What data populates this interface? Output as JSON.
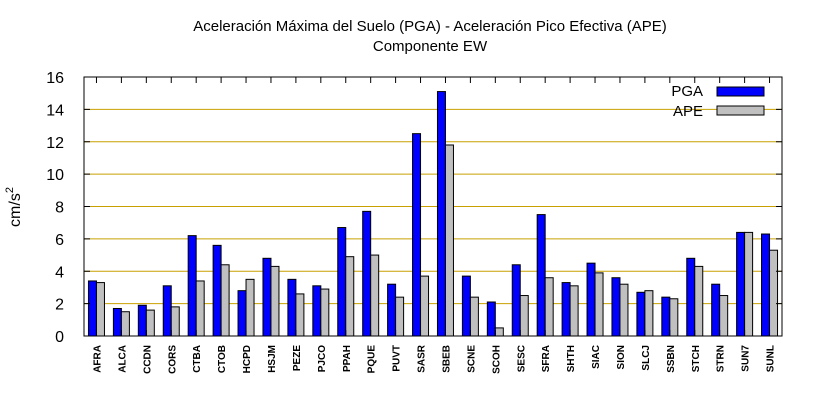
{
  "chart_data": {
    "type": "bar",
    "title": "Aceleración Máxima del Suelo (PGA) -  Aceleración Pico Efectiva (APE)",
    "subtitle": "Componente EW",
    "xlabel": "",
    "ylabel": "cm/s",
    "ylabel_superscript": "2",
    "ylim": [
      0,
      16
    ],
    "yticks": [
      0,
      2,
      4,
      6,
      8,
      10,
      12,
      14,
      16
    ],
    "grid": true,
    "legend_position": "top-right",
    "categories": [
      "AFRA",
      "ALCA",
      "CCDN",
      "CORS",
      "CTBA",
      "CTOB",
      "HCPD",
      "HSJM",
      "PEZE",
      "PJCO",
      "PPAH",
      "PQUE",
      "PUVT",
      "SASR",
      "SBEB",
      "SCNE",
      "SCOH",
      "SESC",
      "SFRA",
      "SHTH",
      "SIAC",
      "SION",
      "SLCJ",
      "SSBN",
      "STCH",
      "STRN",
      "SUN7",
      "SUNL"
    ],
    "series": [
      {
        "name": "PGA",
        "color": "#0000ff",
        "values": [
          3.4,
          1.7,
          1.9,
          3.1,
          6.2,
          5.6,
          2.8,
          4.8,
          3.5,
          3.1,
          6.7,
          7.7,
          3.2,
          12.5,
          15.1,
          3.7,
          2.1,
          4.4,
          7.5,
          3.3,
          4.5,
          3.6,
          2.7,
          2.4,
          4.8,
          3.2,
          6.4,
          6.3
        ]
      },
      {
        "name": "APE",
        "color": "#c0c0c0",
        "values": [
          3.3,
          1.5,
          1.6,
          1.8,
          3.4,
          4.4,
          3.5,
          4.3,
          2.6,
          2.9,
          4.9,
          5.0,
          2.4,
          3.7,
          11.8,
          2.4,
          0.5,
          2.5,
          3.6,
          3.1,
          3.9,
          3.2,
          2.8,
          2.3,
          4.3,
          2.5,
          6.4,
          5.3
        ]
      }
    ]
  }
}
